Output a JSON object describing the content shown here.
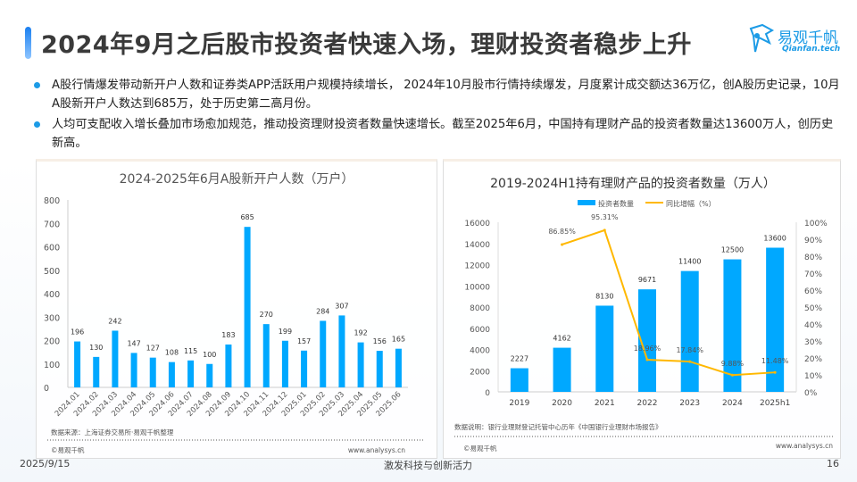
{
  "header": {
    "title": "2024年9月之后股市投资者快速入场，理财投资者稳步上升",
    "logo_name": "易观千帆",
    "logo_en": "Qianfan.tech"
  },
  "bullets": [
    "A股行情爆发带动新开户人数和证券类APP活跃用户规模持续增长， 2024年10月股市行情持续爆发，月度累计成交额达36万亿，创A股历史记录，10月A股新开户人数达到685万，处于历史第二高月份。",
    "人均可支配收入增长叠加市场愈加规范，推动投资理财投资者数量快速增长。截至2025年6月，中国持有理财产品的投资者数量达13600万人，创历史新高。"
  ],
  "chart_data": [
    {
      "type": "bar",
      "title": "2024-2025年6月A股新开户人数（万户）",
      "categories": [
        "2024.01",
        "2024.02",
        "2024.03",
        "2024.04",
        "2024.05",
        "2024.06",
        "2024.07",
        "2024.08",
        "2024.09",
        "2024.10",
        "2024.11",
        "2024.12",
        "2025.01",
        "2025.02",
        "2025.03",
        "2025.04",
        "2025.05",
        "2025.06"
      ],
      "values": [
        196,
        130,
        242,
        147,
        127,
        108,
        115,
        100,
        183,
        685,
        270,
        199,
        157,
        284,
        307,
        192,
        156,
        165
      ],
      "ylim": [
        0,
        800
      ],
      "yticks": [
        0,
        100,
        200,
        300,
        400,
        500,
        600,
        700,
        800
      ],
      "color": "#00a8ff",
      "grid": false,
      "source": "数据来源：上海证券交易所·易观千帆整理",
      "copyright": "©易观千帆",
      "website": "www.analysys.cn"
    },
    {
      "type": "bar+line",
      "title": "2019-2024H1持有理财产品的投资者数量（万人）",
      "categories": [
        "2019",
        "2020",
        "2021",
        "2022",
        "2023",
        "2024",
        "2025h1"
      ],
      "series": [
        {
          "name": "投资者数量",
          "type": "bar",
          "axis": "left",
          "values": [
            2227,
            4162,
            8130,
            9671,
            11400,
            12500,
            13600
          ],
          "labels": [
            "2227",
            "4162",
            "8130",
            "9671",
            "11400",
            "12500",
            "13600"
          ],
          "color": "#00a8ff"
        },
        {
          "name": "同比增幅（%）",
          "type": "line",
          "axis": "right",
          "values": [
            null,
            86.85,
            95.31,
            18.96,
            17.84,
            9.88,
            11.48
          ],
          "labels": [
            "",
            "86.85%",
            "95.31%",
            "18.96%",
            "17.84%",
            "9.88%",
            "11.48%"
          ],
          "color": "#ffb800"
        }
      ],
      "ylim_left": [
        0,
        16000
      ],
      "yticks_left": [
        "0",
        "2000",
        "4000",
        "6000",
        "8000",
        "10000",
        "12000",
        "14000",
        "16000"
      ],
      "ylim_right": [
        0,
        100
      ],
      "yticks_right": [
        "0%",
        "10%",
        "20%",
        "30%",
        "40%",
        "50%",
        "60%",
        "70%",
        "80%",
        "90%",
        "100%"
      ],
      "legend_position": "top",
      "grid": false,
      "source": "数据说明：银行业理财登记托管中心历年《中国银行业理财市场报告》",
      "copyright": "©易观千帆",
      "website": "www.analysys.cn"
    }
  ],
  "footer": {
    "date": "2025/9/15",
    "slogan": "激发科技与创新活力",
    "page": "16"
  }
}
